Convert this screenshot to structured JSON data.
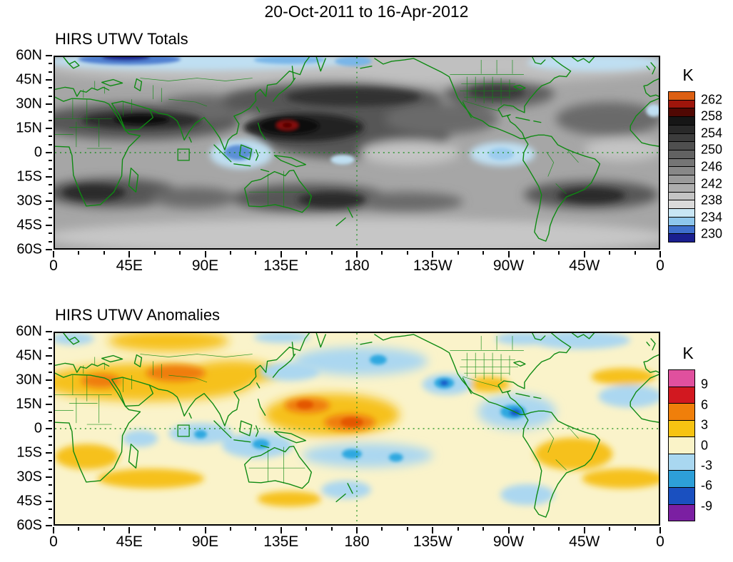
{
  "main_title": "20-Oct-2011 to 16-Apr-2012",
  "map_style": {
    "coastline_color": "#0E8A12",
    "frame_color": "#000000",
    "totals_base_color": "#A6A6A6",
    "anomalies_base_color": "#FAF3CA",
    "reference_line_style": "dashed green at equator and 180 meridian",
    "region_box": "small green square near 78E on the equator"
  },
  "panels": [
    {
      "id": "totals",
      "title": "HIRS UTWV Totals",
      "y_tick_labels": [
        "60N",
        "45N",
        "30N",
        "15N",
        "0",
        "15S",
        "30S",
        "45S",
        "60S"
      ],
      "x_tick_labels": [
        "0",
        "45E",
        "90E",
        "135E",
        "180",
        "135W",
        "90W",
        "45W",
        "0"
      ],
      "colorbar": {
        "unit": "K",
        "tick_labels": [
          "262",
          "258",
          "254",
          "250",
          "246",
          "242",
          "238",
          "234",
          "230"
        ],
        "tick_positions": [
          0.0556,
          0.1667,
          0.2778,
          0.3889,
          0.5,
          0.6111,
          0.7222,
          0.8333,
          0.9444
        ],
        "band_colors_top_to_bottom": [
          "#DC5F12",
          "#9E150B",
          "#500803",
          "#161616",
          "#292929",
          "#3C3C3C",
          "#4F4F4F",
          "#626262",
          "#757575",
          "#888888",
          "#9B9B9B",
          "#AEAEAE",
          "#C4C4C4",
          "#DADADA",
          "#C8E6F5",
          "#8EC6EC",
          "#3F6FCC",
          "#1A1F8F"
        ]
      }
    },
    {
      "id": "anomalies",
      "title": "HIRS UTWV Anomalies",
      "y_tick_labels": [
        "60N",
        "45N",
        "30N",
        "15N",
        "0",
        "15S",
        "30S",
        "45S",
        "60S"
      ],
      "x_tick_labels": [
        "0",
        "45E",
        "90E",
        "135E",
        "180",
        "135W",
        "90W",
        "45W",
        "0"
      ],
      "colorbar": {
        "unit": "K",
        "tick_labels": [
          "9",
          "6",
          "3",
          "0",
          "-3",
          "-6",
          "-9"
        ],
        "tick_positions": [
          0.1,
          0.2333,
          0.3667,
          0.5,
          0.6333,
          0.7667,
          0.9
        ],
        "band_colors_top_to_bottom": [
          "#E0509E",
          "#D21820",
          "#F07F0A",
          "#F7C312",
          "#FAF3C8",
          "#A9D7F0",
          "#2D9FD8",
          "#1A50C0",
          "#7B1FA2"
        ]
      }
    }
  ],
  "chart_data": [
    {
      "type": "heatmap",
      "subtype": "filled_contour_world_map",
      "title": "HIRS UTWV Totals",
      "units": "K",
      "lat_range_deg": [
        -60,
        60
      ],
      "lon_layout": "0E at left edge eastward across 180 (map center) back to 0 at right edge",
      "x_ticks": [
        "0",
        "45E",
        "90E",
        "135E",
        "180",
        "135W",
        "90W",
        "45W",
        "0"
      ],
      "y_ticks": [
        "60N",
        "45N",
        "30N",
        "15N",
        "0",
        "15S",
        "30S",
        "45S",
        "60S"
      ],
      "colorbar_ticks_K": [
        262,
        258,
        254,
        250,
        246,
        242,
        238,
        234,
        230
      ],
      "contour_interval_K": 2,
      "features": [
        {
          "region": "western tropical Pacific near 140E, 15N",
          "value": "maximum > 260 K, dark-red core surrounded by near-black shading"
        },
        {
          "region": "subtropical belts: Sahara-Arabia-India, North Pacific 10-35N, southern Africa, Australia-South Pacific 15-30S, South Atlantic 15-30S",
          "value": "250-258 K (dark gray bands)"
        },
        {
          "region": "Indonesia / Maritime Continent",
          "value": "230-236 K (light blue with medium-blue core)"
        },
        {
          "region": "high northern latitudes 55-60N over northern Europe, Siberia and North Atlantic",
          "value": "230-238 K (blue band, darkest near 30-60E)"
        },
        {
          "region": "northwestern South America / Amazon",
          "value": "234-238 K (light blue patch)"
        },
        {
          "region": "eastern equatorial Pacific and equatorial Atlantic",
          "value": "240-244 K (lighter gray)"
        },
        {
          "region": "mid and high southern latitudes 45-60S",
          "value": "238-242 K (light gray band)"
        }
      ],
      "reference_lines": [
        "dashed equator line",
        "dashed 180 meridian",
        "small green box near 78E on equator"
      ],
      "coastlines": "green with country/state borders"
    },
    {
      "type": "heatmap",
      "subtype": "filled_contour_world_map",
      "title": "HIRS UTWV Anomalies",
      "units": "K",
      "lat_range_deg": [
        -60,
        60
      ],
      "lon_layout": "0E at left edge eastward across 180 (map center) back to 0 at right edge",
      "x_ticks": [
        "0",
        "45E",
        "90E",
        "135E",
        "180",
        "135W",
        "90W",
        "45W",
        "0"
      ],
      "y_ticks": [
        "60N",
        "45N",
        "30N",
        "15N",
        "0",
        "15S",
        "30S",
        "45S",
        "60S"
      ],
      "colorbar_ticks_K": [
        9,
        6,
        3,
        0,
        -3,
        -6,
        -9
      ],
      "features": [
        {
          "region": "equatorial west-central Pacific 150E-180",
          "value": "+3 to +8 K (large orange/gold blob with deep orange cores near 150E 15N and 175E 0)"
        },
        {
          "region": "North Africa through Middle East to India/Himalaya and China",
          "value": "+3 to +7 K (gold band with orange cores over NE Africa and N India)"
        },
        {
          "region": "Siberia 45-60N",
          "value": "+1 to +4 K (gold patches)"
        },
        {
          "region": "SW Indian Ocean, Angola/Namibia coast, Brazil, South Atlantic 20-35S, mid North Atlantic ~30N",
          "value": "+1 to +4 K (gold patches)"
        },
        {
          "region": "eastern Pacific / Caribbean near 85-110W, 5-20N",
          "value": "-3 to -9 K (light blue with cyan and deep-blue cores)"
        },
        {
          "region": "off Baja California ~125W 25N",
          "value": "-3 to -7 K (cyan core)"
        },
        {
          "region": "Coral Sea through South Pacific 150E-130W, 10-25S",
          "value": "-3 to -6 K (blue band with cyan cores)"
        },
        {
          "region": "North Pacific 150E-140W, 30-45N",
          "value": "-1 to -5 K (blue patches)"
        },
        {
          "region": "equatorial Indian Ocean south of India, subtropical North Atlantic off West Africa, New Zealand area, seas around southern South America, North Atlantic near 60N",
          "value": "-1 to -3 K (light blue)"
        },
        {
          "region": "most remaining areas",
          "value": "near 0 K (pale yellow background)"
        }
      ],
      "reference_lines": [
        "dashed equator line",
        "dashed 180 meridian",
        "small green box near 78E on equator"
      ],
      "coastlines": "green with country/state borders"
    }
  ]
}
